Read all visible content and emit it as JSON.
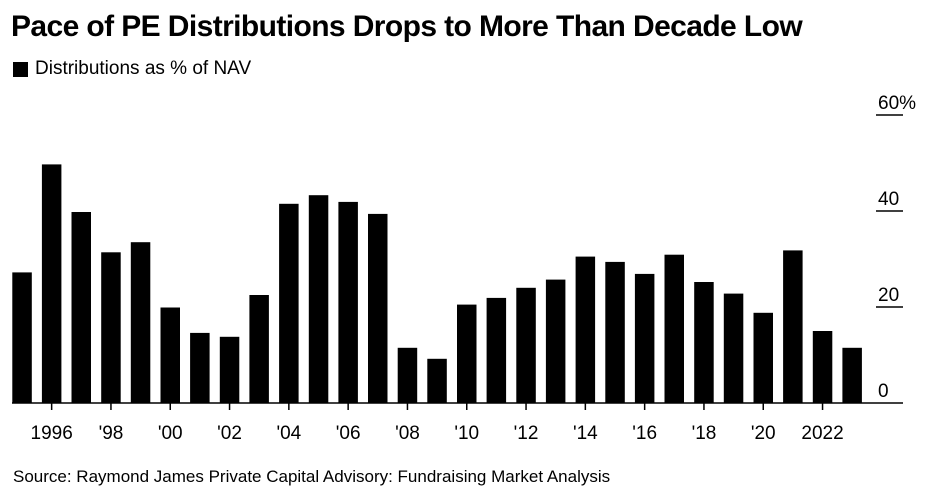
{
  "chart_data": {
    "type": "bar",
    "title": "Pace of PE Distributions Drops to More Than Decade Low",
    "legend": [
      "Distributions as % of NAV"
    ],
    "source": "Source: Raymond James Private Capital Advisory: Fundraising Market Analysis",
    "x": [
      1995,
      1996,
      1997,
      1998,
      1999,
      2000,
      2001,
      2002,
      2003,
      2004,
      2005,
      2006,
      2007,
      2008,
      2009,
      2010,
      2011,
      2012,
      2013,
      2014,
      2015,
      2016,
      2017,
      2018,
      2019,
      2020,
      2021,
      2022,
      2023
    ],
    "values": [
      27.2,
      49.7,
      39.8,
      31.4,
      33.5,
      19.9,
      14.6,
      13.8,
      22.5,
      41.5,
      43.3,
      41.9,
      39.4,
      11.5,
      9.2,
      20.5,
      21.9,
      24.0,
      25.7,
      30.5,
      29.4,
      26.9,
      30.9,
      25.2,
      22.8,
      18.8,
      31.8,
      15.0,
      11.5
    ],
    "series": [
      {
        "name": "Distributions as % of NAV",
        "color": "#000000"
      }
    ],
    "x_tick_labels": [
      {
        "x": 1996,
        "label": "1996"
      },
      {
        "x": 1998,
        "label": "'98"
      },
      {
        "x": 2000,
        "label": "'00"
      },
      {
        "x": 2002,
        "label": "'02"
      },
      {
        "x": 2004,
        "label": "'04"
      },
      {
        "x": 2006,
        "label": "'06"
      },
      {
        "x": 2008,
        "label": "'08"
      },
      {
        "x": 2010,
        "label": "'10"
      },
      {
        "x": 2012,
        "label": "'12"
      },
      {
        "x": 2014,
        "label": "'14"
      },
      {
        "x": 2016,
        "label": "'16"
      },
      {
        "x": 2018,
        "label": "'18"
      },
      {
        "x": 2020,
        "label": "'20"
      },
      {
        "x": 2022,
        "label": "2022"
      }
    ],
    "y_ticks": [
      {
        "value": 0,
        "label": "0"
      },
      {
        "value": 20,
        "label": "20"
      },
      {
        "value": 40,
        "label": "40"
      },
      {
        "value": 60,
        "label": "60%"
      }
    ],
    "ylim": [
      0,
      60
    ],
    "y_axis_side": "right",
    "grid": false,
    "legend_position": "top-left"
  }
}
